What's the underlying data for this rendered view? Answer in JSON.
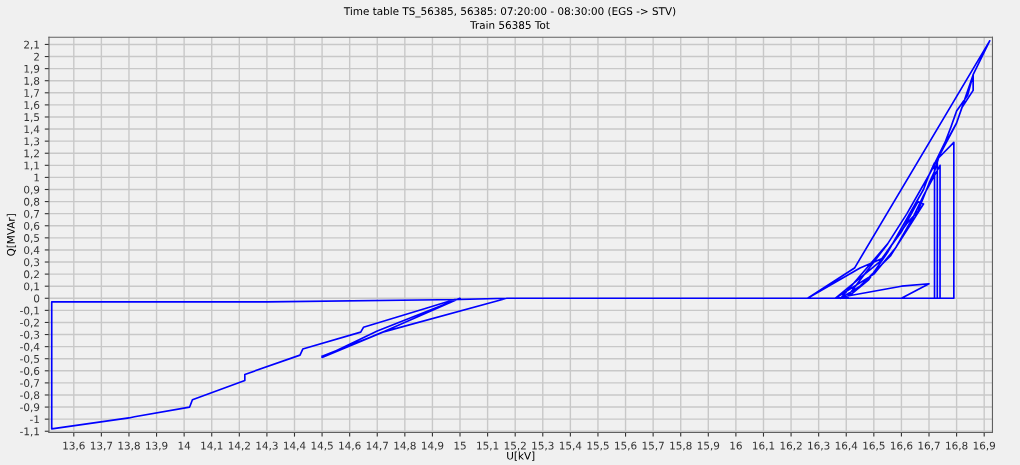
{
  "chart_data": {
    "type": "line",
    "title": "Time table TS_56385, 56385: 07:20:00 - 08:30:00 (EGS -> STV)",
    "subtitle": "Train 56385 Tot",
    "xlabel": "U[kV]",
    "ylabel": "Q[MVAr]",
    "xlim": [
      13.51,
      16.93
    ],
    "ylim": [
      -1.11,
      2.16
    ],
    "xticks": [
      {
        "value": 13.6,
        "label": "13,6"
      },
      {
        "value": 13.7,
        "label": "13,7"
      },
      {
        "value": 13.8,
        "label": "13,8"
      },
      {
        "value": 13.9,
        "label": "13,9"
      },
      {
        "value": 14,
        "label": "14"
      },
      {
        "value": 14.1,
        "label": "14,1"
      },
      {
        "value": 14.2,
        "label": "14,2"
      },
      {
        "value": 14.3,
        "label": "14,3"
      },
      {
        "value": 14.4,
        "label": "14,4"
      },
      {
        "value": 14.5,
        "label": "14,5"
      },
      {
        "value": 14.6,
        "label": "14,6"
      },
      {
        "value": 14.7,
        "label": "14,7"
      },
      {
        "value": 14.8,
        "label": "14,8"
      },
      {
        "value": 14.9,
        "label": "14,9"
      },
      {
        "value": 15,
        "label": "15"
      },
      {
        "value": 15.1,
        "label": "15,1"
      },
      {
        "value": 15.2,
        "label": "15,2"
      },
      {
        "value": 15.3,
        "label": "15,3"
      },
      {
        "value": 15.4,
        "label": "15,4"
      },
      {
        "value": 15.5,
        "label": "15,5"
      },
      {
        "value": 15.6,
        "label": "15,6"
      },
      {
        "value": 15.7,
        "label": "15,7"
      },
      {
        "value": 15.8,
        "label": "15,8"
      },
      {
        "value": 15.9,
        "label": "15,9"
      },
      {
        "value": 16,
        "label": "16"
      },
      {
        "value": 16.1,
        "label": "16,1"
      },
      {
        "value": 16.2,
        "label": "16,2"
      },
      {
        "value": 16.3,
        "label": "16,3"
      },
      {
        "value": 16.4,
        "label": "16,4"
      },
      {
        "value": 16.5,
        "label": "16,5"
      },
      {
        "value": 16.6,
        "label": "16,6"
      },
      {
        "value": 16.7,
        "label": "16,7"
      },
      {
        "value": 16.8,
        "label": "16,8"
      },
      {
        "value": 16.9,
        "label": "16,9"
      }
    ],
    "yticks": [
      {
        "value": -1.1,
        "label": "-1,1"
      },
      {
        "value": -1,
        "label": "-1"
      },
      {
        "value": -0.9,
        "label": "-0,9"
      },
      {
        "value": -0.8,
        "label": "-0,8"
      },
      {
        "value": -0.7,
        "label": "-0,7"
      },
      {
        "value": -0.6,
        "label": "-0,6"
      },
      {
        "value": -0.5,
        "label": "-0,5"
      },
      {
        "value": -0.4,
        "label": "-0,4"
      },
      {
        "value": -0.3,
        "label": "-0,3"
      },
      {
        "value": -0.2,
        "label": "-0,2"
      },
      {
        "value": -0.1,
        "label": "-0,1"
      },
      {
        "value": 0,
        "label": "0"
      },
      {
        "value": 0.1,
        "label": "0,1"
      },
      {
        "value": 0.2,
        "label": "0,2"
      },
      {
        "value": 0.3,
        "label": "0,3"
      },
      {
        "value": 0.4,
        "label": "0,4"
      },
      {
        "value": 0.5,
        "label": "0,5"
      },
      {
        "value": 0.6,
        "label": "0,6"
      },
      {
        "value": 0.7,
        "label": "0,7"
      },
      {
        "value": 0.8,
        "label": "0,8"
      },
      {
        "value": 0.9,
        "label": "0,9"
      },
      {
        "value": 1,
        "label": "1"
      },
      {
        "value": 1.1,
        "label": "1,1"
      },
      {
        "value": 1.2,
        "label": "1,2"
      },
      {
        "value": 1.3,
        "label": "1,3"
      },
      {
        "value": 1.4,
        "label": "1,4"
      },
      {
        "value": 1.5,
        "label": "1,5"
      },
      {
        "value": 1.6,
        "label": "1,6"
      },
      {
        "value": 1.7,
        "label": "1,7"
      },
      {
        "value": 1.8,
        "label": "1,8"
      },
      {
        "value": 1.9,
        "label": "1,9"
      },
      {
        "value": 2,
        "label": "2"
      },
      {
        "value": 2.1,
        "label": "2,1"
      }
    ],
    "grid": true,
    "marker": "none",
    "line_style": "solid",
    "series": [
      {
        "color": "#0000ff",
        "x": [
          14.5,
          14.7,
          14.95,
          15.0,
          14.7,
          14.5,
          14.72,
          15.17,
          15.4,
          16.26,
          16.43,
          16.92,
          16.86,
          16.86,
          16.82,
          16.8,
          16.74,
          16.72,
          16.7,
          16.66,
          16.62,
          16.53,
          16.45,
          16.26,
          16.4,
          16.48,
          16.55,
          16.6,
          16.68,
          16.7,
          16.76,
          16.78,
          16.8,
          16.84,
          16.86,
          16.8,
          16.7,
          16.62,
          16.55,
          16.4,
          16.36,
          16.5,
          16.58,
          16.64,
          16.68,
          16.74,
          16.74,
          16.72,
          16.72,
          16.7,
          16.62,
          16.55,
          16.38,
          16.45,
          16.56,
          16.63,
          16.68,
          16.66,
          16.6,
          16.52,
          16.36,
          16.6,
          16.7,
          16.6,
          16.73,
          16.73,
          16.79,
          16.79,
          16.5,
          15.17,
          14.98,
          14.88,
          14.65,
          14.64,
          14.43,
          14.42,
          14.22,
          14.22,
          14.03,
          14.02,
          13.82,
          13.8,
          13.52,
          13.52,
          13.8,
          14.3,
          15.0,
          15.17
        ],
        "values": [
          -0.48,
          -0.3,
          -0.05,
          0,
          -0.27,
          -0.49,
          -0.28,
          0,
          0,
          0,
          0.25,
          2.13,
          1.85,
          1.72,
          1.58,
          1.45,
          1.2,
          1.05,
          0.95,
          0.72,
          0.62,
          0.33,
          0.25,
          0,
          0,
          0.15,
          0.38,
          0.58,
          0.9,
          1.02,
          1.3,
          1.42,
          1.55,
          1.68,
          1.85,
          1.45,
          1.02,
          0.7,
          0.45,
          0,
          0,
          0.2,
          0.42,
          0.66,
          0.85,
          1.1,
          0,
          0,
          1.12,
          1.02,
          0.7,
          0.45,
          0,
          0.1,
          0.35,
          0.6,
          0.78,
          0.8,
          0.55,
          0.3,
          0,
          0.1,
          0.12,
          0,
          0,
          1.15,
          1.29,
          0,
          0,
          0,
          -0.01,
          -0.08,
          -0.24,
          -0.28,
          -0.42,
          -0.47,
          -0.63,
          -0.68,
          -0.84,
          -0.9,
          -0.98,
          -0.99,
          -1.08,
          -0.03,
          -0.03,
          -0.03,
          -0.01,
          0
        ]
      }
    ]
  }
}
